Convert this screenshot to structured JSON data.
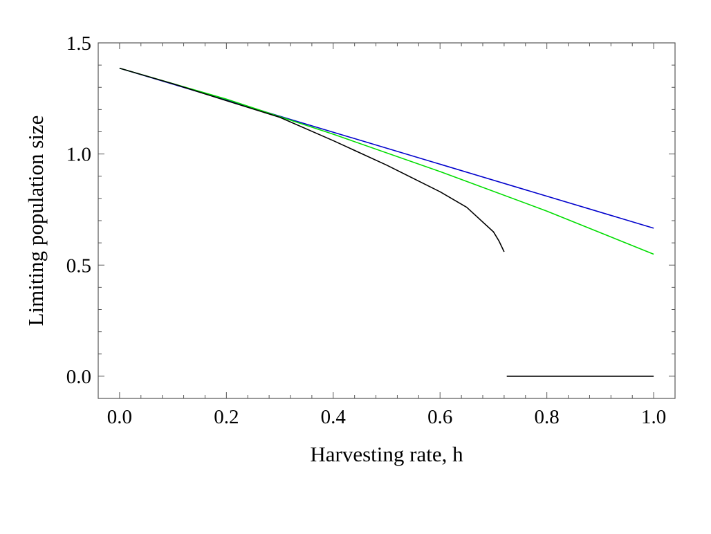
{
  "chart_data": {
    "type": "line",
    "xlabel": "Harvesting rate, h",
    "ylabel": "Limiting population size",
    "xlim": [
      -0.04,
      1.04
    ],
    "ylim": [
      -0.1,
      1.5
    ],
    "xticks": [
      0.0,
      0.2,
      0.4,
      0.6,
      0.8,
      1.0
    ],
    "xtick_labels": [
      "0.0",
      "0.2",
      "0.4",
      "0.6",
      "0.8",
      "1.0"
    ],
    "yticks": [
      0.0,
      0.5,
      1.0,
      1.5
    ],
    "ytick_labels": [
      "0.0",
      "0.5",
      "1.0",
      "1.5"
    ],
    "grid": false,
    "series": [
      {
        "color": "#0000cc",
        "x": [
          0.0,
          1.0
        ],
        "y": [
          1.386,
          0.666
        ]
      },
      {
        "color": "#00dd00",
        "x": [
          0.0,
          0.2,
          0.4,
          0.6,
          0.8,
          1.0
        ],
        "y": [
          1.386,
          1.247,
          1.089,
          0.921,
          0.743,
          0.549
        ]
      },
      {
        "color": "#000000",
        "x": [
          0.0,
          0.1,
          0.2,
          0.3,
          0.4,
          0.5,
          0.6,
          0.65,
          0.7,
          0.71,
          0.72
        ],
        "y": [
          1.386,
          1.316,
          1.24,
          1.165,
          1.06,
          0.95,
          0.83,
          0.76,
          0.65,
          0.61,
          0.56
        ]
      },
      {
        "color": "#000000",
        "x": [
          0.725,
          1.0
        ],
        "y": [
          0.0,
          0.0
        ]
      }
    ]
  }
}
